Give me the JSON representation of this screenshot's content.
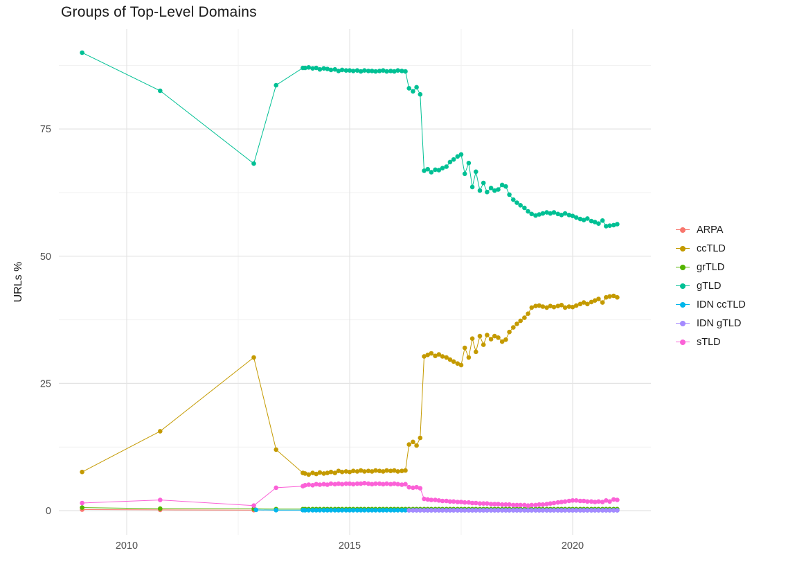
{
  "chart_data": {
    "type": "line",
    "title": "Groups of Top-Level Domains",
    "xlabel": "",
    "ylabel": "URLs %",
    "x_ticks": [
      2010,
      2015,
      2020
    ],
    "x_minor": [
      2012.5,
      2017.5
    ],
    "y_ticks": [
      0,
      25,
      50,
      75
    ],
    "y_minor": [
      12.5,
      37.5,
      62.5,
      87.5
    ],
    "xlim": [
      2008.6,
      2021.5
    ],
    "ylim": [
      -3,
      94
    ],
    "grid": "on",
    "legend_position": "right",
    "x_dense": [
      2014.0,
      2014.08,
      2014.17,
      2014.25,
      2014.33,
      2014.42,
      2014.5,
      2014.58,
      2014.67,
      2014.75,
      2014.83,
      2014.92,
      2015.0,
      2015.08,
      2015.17,
      2015.25,
      2015.33,
      2015.42,
      2015.5,
      2015.58,
      2015.67,
      2015.75,
      2015.83,
      2015.92,
      2016.0,
      2016.08,
      2016.17,
      2016.25,
      2016.33,
      2016.42,
      2016.5,
      2016.58,
      2016.67,
      2016.75,
      2016.83,
      2016.92,
      2017.0,
      2017.08,
      2017.17,
      2017.25,
      2017.33,
      2017.42,
      2017.5,
      2017.58,
      2017.67,
      2017.75,
      2017.83,
      2017.92,
      2018.0,
      2018.08,
      2018.17,
      2018.25,
      2018.33,
      2018.42,
      2018.5,
      2018.58,
      2018.67,
      2018.75,
      2018.83,
      2018.92,
      2019.0,
      2019.08,
      2019.17,
      2019.25,
      2019.33,
      2019.42,
      2019.5,
      2019.58,
      2019.67,
      2019.75,
      2019.83,
      2019.92,
      2020.0,
      2020.08,
      2020.17,
      2020.25,
      2020.33,
      2020.42,
      2020.5,
      2020.58,
      2020.67,
      2020.75,
      2020.83,
      2020.92,
      2021.0
    ],
    "series": [
      {
        "name": "ARPA",
        "color": "#F8766D",
        "sparse": [
          [
            2009.0,
            0.2
          ],
          [
            2010.75,
            0.15
          ],
          [
            2012.85,
            0.1
          ]
        ]
      },
      {
        "name": "ccTLD",
        "color": "#C49A00",
        "sparse": [
          [
            2009.0,
            7.6
          ],
          [
            2010.75,
            15.6
          ],
          [
            2012.85,
            30.1
          ],
          [
            2013.35,
            12.0
          ],
          [
            2013.95,
            7.4
          ]
        ],
        "y_dense": [
          7.3,
          7.1,
          7.4,
          7.2,
          7.5,
          7.3,
          7.4,
          7.6,
          7.4,
          7.8,
          7.6,
          7.7,
          7.6,
          7.8,
          7.7,
          7.9,
          7.7,
          7.8,
          7.7,
          7.9,
          7.8,
          7.7,
          7.9,
          7.8,
          7.9,
          7.7,
          7.8,
          7.9,
          13.0,
          13.5,
          12.8,
          14.3,
          30.3,
          30.6,
          30.9,
          30.4,
          30.7,
          30.3,
          30.1,
          29.7,
          29.3,
          28.9,
          28.6,
          32.0,
          30.1,
          33.8,
          31.2,
          34.3,
          32.6,
          34.5,
          33.7,
          34.3,
          34.0,
          33.2,
          33.6,
          35.1,
          36.0,
          36.7,
          37.3,
          37.9,
          38.7,
          39.9,
          40.2,
          40.3,
          40.1,
          39.9,
          40.2,
          40.0,
          40.2,
          40.4,
          39.9,
          40.1,
          40.0,
          40.3,
          40.6,
          40.9,
          40.6,
          41.0,
          41.3,
          41.6,
          40.9,
          41.9,
          42.1,
          42.2,
          41.9
        ]
      },
      {
        "name": "grTLD",
        "color": "#53B400",
        "sparse": [
          [
            2009.0,
            0.6
          ],
          [
            2010.75,
            0.4
          ],
          [
            2012.85,
            0.35
          ],
          [
            2013.35,
            0.3
          ],
          [
            2013.95,
            0.3
          ]
        ],
        "dense_const": 0.3
      },
      {
        "name": "gTLD",
        "color": "#00C094",
        "sparse": [
          [
            2009.0,
            90.0
          ],
          [
            2010.75,
            82.5
          ],
          [
            2012.85,
            68.2
          ],
          [
            2013.35,
            83.6
          ],
          [
            2013.95,
            87.0
          ]
        ],
        "y_dense": [
          87.0,
          87.1,
          86.9,
          87.0,
          86.7,
          86.9,
          86.8,
          86.6,
          86.7,
          86.4,
          86.6,
          86.5,
          86.5,
          86.4,
          86.5,
          86.3,
          86.5,
          86.4,
          86.4,
          86.3,
          86.4,
          86.5,
          86.3,
          86.4,
          86.3,
          86.5,
          86.4,
          86.3,
          83.0,
          82.4,
          83.2,
          81.8,
          66.8,
          67.1,
          66.5,
          67.0,
          66.9,
          67.3,
          67.6,
          68.5,
          69.0,
          69.6,
          70.0,
          66.2,
          68.3,
          63.6,
          66.6,
          62.9,
          64.4,
          62.6,
          63.4,
          62.9,
          63.1,
          64.0,
          63.7,
          62.1,
          61.1,
          60.5,
          60.0,
          59.5,
          58.8,
          58.3,
          58.0,
          58.2,
          58.4,
          58.6,
          58.4,
          58.6,
          58.3,
          58.1,
          58.4,
          58.1,
          57.9,
          57.6,
          57.3,
          57.1,
          57.4,
          56.9,
          56.7,
          56.4,
          57.0,
          55.9,
          56.0,
          56.1,
          56.3
        ]
      },
      {
        "name": "IDN ccTLD",
        "color": "#00B6EB",
        "sparse": [
          [
            2012.9,
            0.15
          ],
          [
            2013.35,
            0.1
          ],
          [
            2013.95,
            0.1
          ]
        ],
        "dense_const": 0.08
      },
      {
        "name": "IDN gTLD",
        "color": "#A58AFF",
        "dense_const": 0.05,
        "dense_start": 2016.33
      },
      {
        "name": "sTLD",
        "color": "#FB61D7",
        "sparse": [
          [
            2009.0,
            1.5
          ],
          [
            2010.75,
            2.1
          ],
          [
            2012.85,
            1.0
          ],
          [
            2013.35,
            4.5
          ],
          [
            2013.95,
            4.8
          ]
        ],
        "y_dense": [
          5.0,
          5.1,
          5.0,
          5.2,
          5.1,
          5.2,
          5.1,
          5.3,
          5.2,
          5.3,
          5.2,
          5.3,
          5.3,
          5.2,
          5.3,
          5.3,
          5.4,
          5.3,
          5.2,
          5.3,
          5.3,
          5.2,
          5.3,
          5.2,
          5.3,
          5.2,
          5.1,
          5.2,
          4.6,
          4.5,
          4.6,
          4.4,
          2.3,
          2.2,
          2.1,
          2.1,
          2.0,
          1.9,
          1.9,
          1.8,
          1.8,
          1.7,
          1.7,
          1.6,
          1.6,
          1.5,
          1.5,
          1.4,
          1.4,
          1.4,
          1.3,
          1.3,
          1.3,
          1.2,
          1.2,
          1.2,
          1.1,
          1.1,
          1.1,
          1.1,
          1.0,
          1.1,
          1.1,
          1.2,
          1.2,
          1.3,
          1.4,
          1.5,
          1.6,
          1.7,
          1.8,
          1.9,
          2.0,
          2.0,
          1.9,
          1.9,
          1.8,
          1.8,
          1.7,
          1.8,
          1.7,
          2.0,
          1.8,
          2.2,
          2.1
        ]
      }
    ],
    "style": {
      "grid_major_color": "#e4e4e4",
      "grid_minor_color": "#f1f1f1",
      "tick_label_color": "#4d4d4d",
      "background": "#ffffff"
    }
  }
}
